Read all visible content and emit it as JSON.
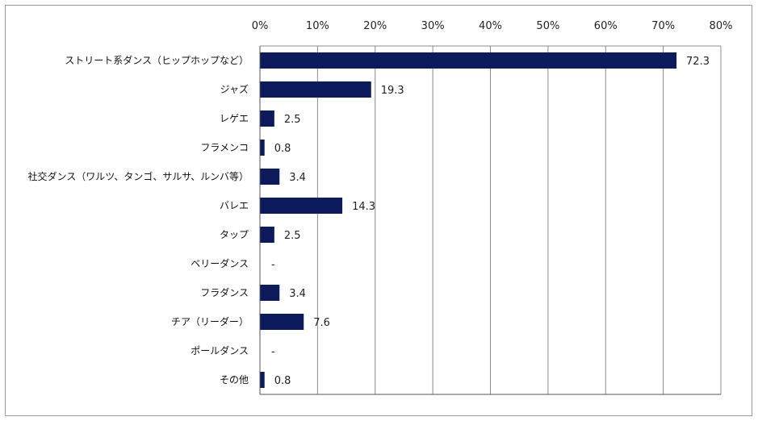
{
  "chart_data": {
    "type": "bar",
    "orientation": "horizontal",
    "title": "",
    "xlabel": "",
    "ylabel": "",
    "xlim": [
      0,
      80
    ],
    "x_ticks": [
      "0%",
      "10%",
      "20%",
      "30%",
      "40%",
      "50%",
      "60%",
      "70%",
      "80%"
    ],
    "tick_position": "top",
    "grid": true,
    "legend": "none",
    "bar_color": "#0d1a5c",
    "categories": [
      "ストリート系ダンス（ヒップホップなど）",
      "ジャズ",
      "レゲエ",
      "フラメンコ",
      "社交ダンス（ワルツ、タンゴ、サルサ、ルンバ等）",
      "バレエ",
      "タップ",
      "ベリーダンス",
      "フラダンス",
      "チア（リーダー）",
      "ポールダンス",
      "その他"
    ],
    "values": [
      72.3,
      19.3,
      2.5,
      0.8,
      3.4,
      14.3,
      2.5,
      null,
      3.4,
      7.6,
      null,
      0.8
    ],
    "value_labels": [
      "72.3",
      "19.3",
      "2.5",
      "0.8",
      "3.4",
      "14.3",
      "2.5",
      "-",
      "3.4",
      "7.6",
      "-",
      "0.8"
    ]
  }
}
